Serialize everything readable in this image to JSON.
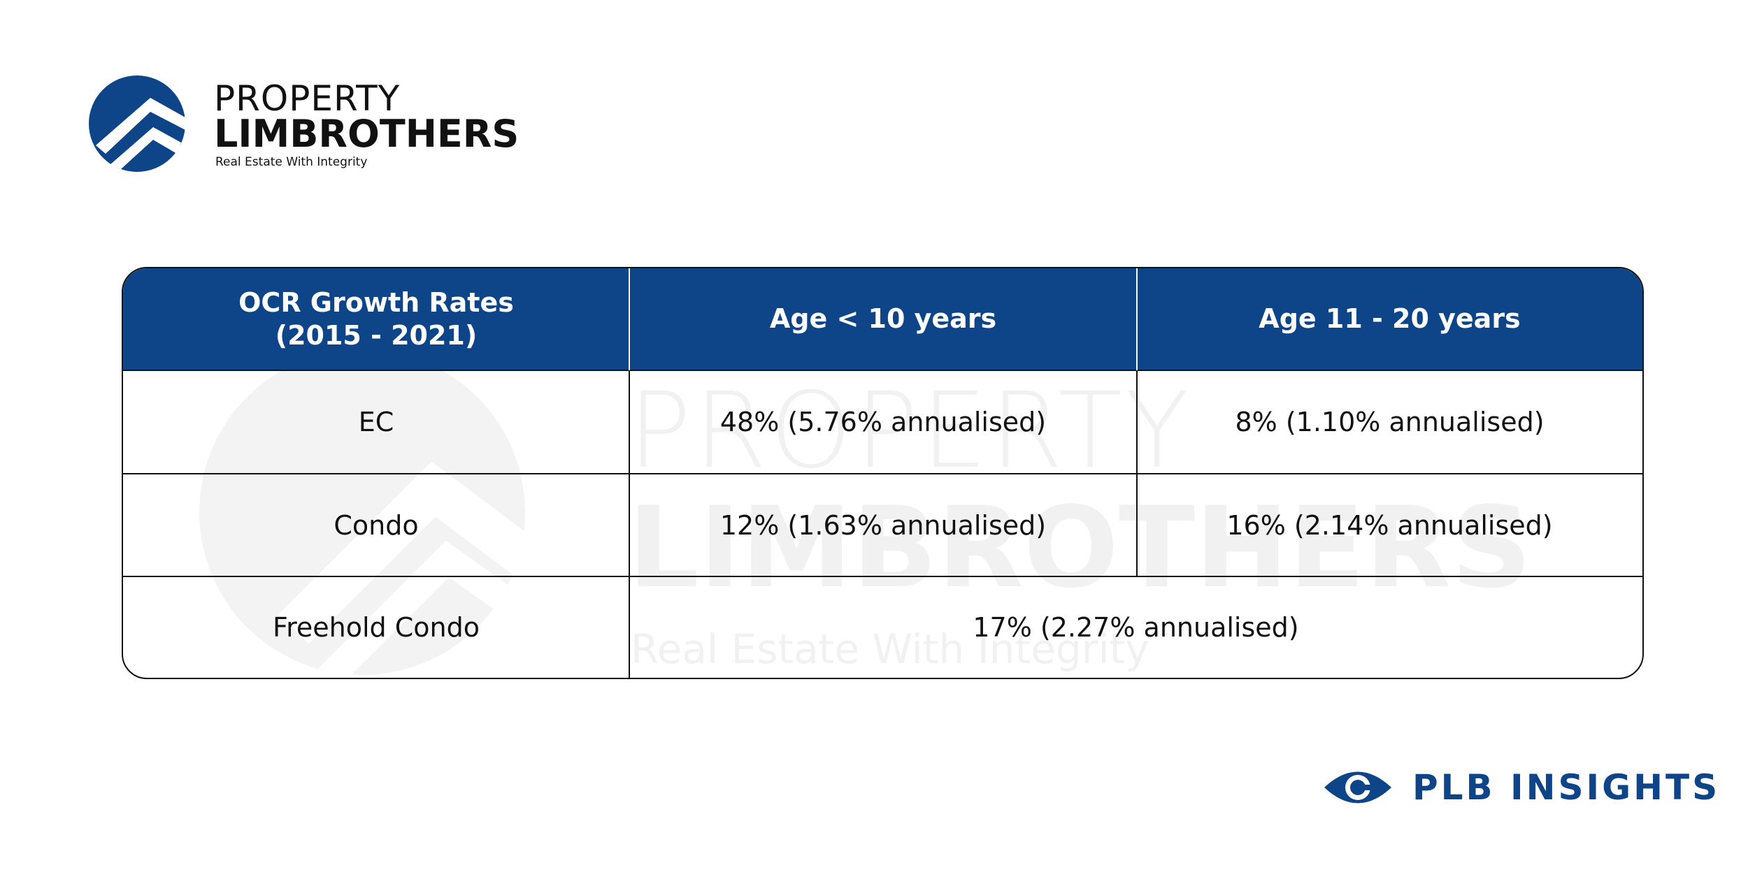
{
  "logo": {
    "line1": "PROPERTY",
    "line2": "LIMBROTHERS",
    "tagline": "Real Estate With Integrity"
  },
  "table": {
    "header": [
      "OCR Growth Rates\n(2015 - 2021)",
      "Age < 10 years",
      "Age 11 - 20 years"
    ],
    "rows": [
      [
        "EC",
        "48% (5.76% annualised)",
        "8% (1.10% annualised)"
      ],
      [
        "Condo",
        "12% (1.63% annualised)",
        "16% (2.14% annualised)"
      ],
      [
        "Freehold Condo",
        "17% (2.27% annualised)"
      ]
    ]
  },
  "brand": "PLB INSIGHTS"
}
